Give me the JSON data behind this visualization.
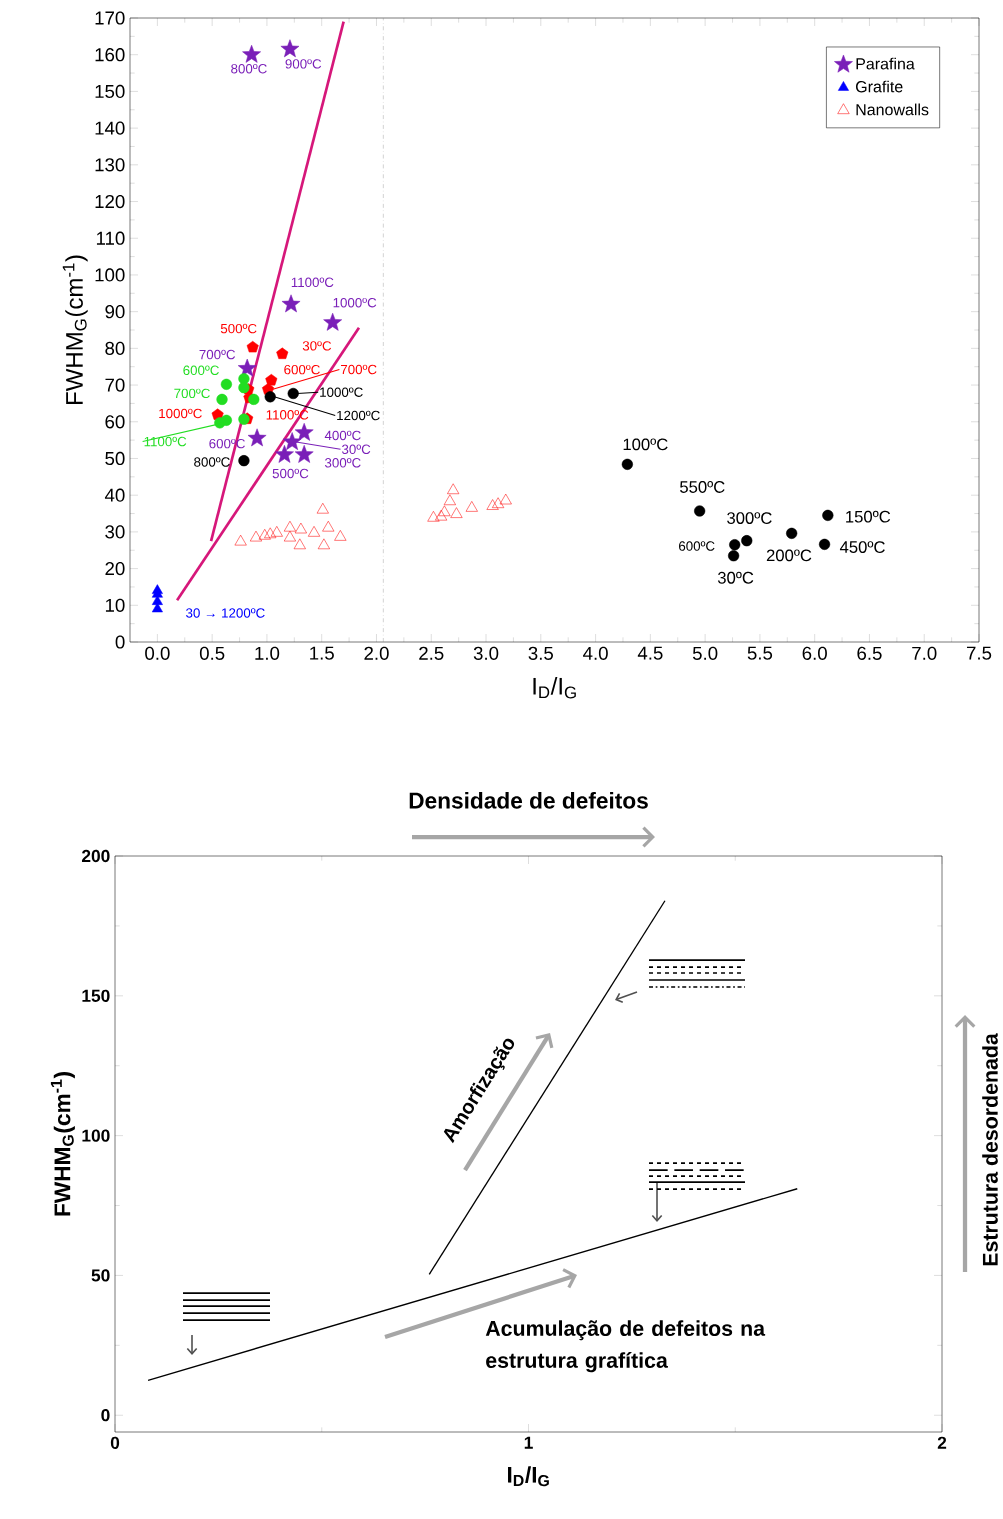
{
  "chart_data": [
    {
      "type": "scatter",
      "xlabel": "I$_{D}$/I$_{G}$",
      "ylabel": "FWHM$_{G}$(cm$^{-1}$)",
      "xlim": [
        -0.25,
        7.5
      ],
      "ylim": [
        0,
        170
      ],
      "xticks": [
        {
          "value": 0,
          "label": "0.0"
        },
        {
          "value": 0.5,
          "label": "0.5"
        },
        {
          "value": 1,
          "label": "1.0"
        },
        {
          "value": 1.5,
          "label": "1.5"
        },
        {
          "value": 2,
          "label": "2.0"
        },
        {
          "value": 2.5,
          "label": "2.5"
        },
        {
          "value": 3,
          "label": "3.0"
        },
        {
          "value": 3.5,
          "label": "3.5"
        },
        {
          "value": 4,
          "label": "4.0"
        },
        {
          "value": 4.5,
          "label": "4.5"
        },
        {
          "value": 5,
          "label": "5.0"
        },
        {
          "value": 5.5,
          "label": "5.5"
        },
        {
          "value": 6,
          "label": "6.0"
        },
        {
          "value": 6.5,
          "label": "6.5"
        },
        {
          "value": 7,
          "label": "7.0"
        },
        {
          "value": 7.5,
          "label": "7.5"
        }
      ],
      "yticks": [
        0,
        10,
        20,
        30,
        40,
        50,
        60,
        70,
        80,
        90,
        100,
        110,
        120,
        130,
        140,
        150,
        160,
        170
      ],
      "legend": "top right",
      "series": [
        {
          "name": "Parafina",
          "type": "scatter",
          "marker": "star",
          "color": "#7a1fb8",
          "x": [
            0.86,
            1.21,
            1.22,
            1.6,
            0.82,
            0.91,
            1.34,
            1.23,
            1.16,
            1.34
          ],
          "values": [
            160,
            161.5,
            92,
            87,
            74.5,
            55.5,
            57,
            54.5,
            51,
            51
          ]
        },
        {
          "type": "scatter",
          "color": "#ff0000",
          "x": [
            0.87,
            1.14,
            1.04,
            1.01,
            0.83,
            0.84,
            0.55,
            0.82
          ],
          "values": [
            80.3,
            78.5,
            71.3,
            68.8,
            68.8,
            66.5,
            61.9,
            60.8
          ]
        },
        {
          "type": "scatter",
          "marker": "circle",
          "color": "#22dd22",
          "x": [
            0.63,
            0.79,
            0.79,
            0.59,
            0.88,
            0.63,
            0.57,
            0.79
          ],
          "values": [
            70.2,
            71.7,
            69.3,
            66.1,
            66.1,
            60.4,
            59.7,
            60.7
          ]
        },
        {
          "type": "scatter",
          "marker": "circle",
          "color": "#000000",
          "x": [
            1.03,
            1.24,
            0.79,
            4.29,
            4.95,
            6.12,
            5.79,
            5.38,
            5.27,
            5.26,
            6.09
          ],
          "values": [
            66.8,
            67.7,
            49.4,
            48.4,
            35.7,
            34.5,
            29.6,
            27.6,
            26.5,
            23.5,
            26.6
          ]
        },
        {
          "name": "Grafite",
          "type": "scatter",
          "marker": "triangle",
          "color": "#0000ff",
          "x": [
            0,
            0,
            0,
            0
          ],
          "values": [
            9,
            11,
            13,
            14
          ]
        },
        {
          "name": "Nanowalls",
          "type": "scatter",
          "marker": "triangle_open",
          "color": "#ff0000",
          "x": [
            0.76,
            0.9,
            0.98,
            1.03,
            1.09,
            1.21,
            1.31,
            1.43,
            1.56,
            1.67,
            1.51,
            1.21,
            1.3,
            1.52,
            2.7,
            2.67,
            2.87,
            2.62,
            2.73,
            2.52,
            2.59,
            3.18,
            3.11,
            3.06
          ],
          "values": [
            27.3,
            28.4,
            28.9,
            29.3,
            29.7,
            31.1,
            30.6,
            29.7,
            31.1,
            28.6,
            36,
            28.4,
            26.3,
            26.3,
            41.3,
            38.3,
            36.5,
            35.3,
            34.8,
            33.8,
            34.1,
            38.5,
            37.5,
            37
          ]
        },
        {
          "type": "line",
          "color": "#d6177a",
          "line_style": "solid",
          "x": [
            0.49,
            1.7
          ],
          "values": [
            27.5,
            169
          ]
        },
        {
          "type": "line",
          "color": "#d6177a",
          "line_style": "solid",
          "x": [
            0.18,
            1.84
          ],
          "values": [
            11.4,
            85.6
          ]
        }
      ],
      "ref_lines": [
        {
          "axis": "x",
          "value": 2.06,
          "color": "#808080",
          "line_style": "dashdot"
        }
      ],
      "annotations": [
        {
          "text": "800ºC",
          "x": 0.86,
          "y": 160
        },
        {
          "text": "900ºC",
          "x": 1.21,
          "y": 161.5
        },
        {
          "text": "1100ºC",
          "x": 1.22,
          "y": 92
        },
        {
          "text": "1000ºC",
          "x": 1.6,
          "y": 87
        },
        {
          "text": "700ºC",
          "x": 0.82,
          "y": 74.5
        },
        {
          "text": "600ºC",
          "x": 0.91,
          "y": 55.5
        },
        {
          "text": "400ºC",
          "x": 1.34,
          "y": 57
        },
        {
          "text": "30ºC",
          "x": 1.23,
          "y": 54.5
        },
        {
          "text": "500ºC",
          "x": 1.16,
          "y": 51
        },
        {
          "text": "300ºC",
          "x": 1.34,
          "y": 51
        },
        {
          "text": "500ºC",
          "x": 0.87,
          "y": 80.3
        },
        {
          "text": "30ºC",
          "x": 1.14,
          "y": 78.5
        },
        {
          "text": "600ºC",
          "x": 1.04,
          "y": 71.3
        },
        {
          "text": "700ºC",
          "x": 1.01,
          "y": 68.8
        },
        {
          "text": "1000ºC",
          "x": 0.55,
          "y": 61.9
        },
        {
          "text": "1100ºC",
          "x": 0.82,
          "y": 60.8
        },
        {
          "text": "600ºC",
          "x": 0.63,
          "y": 70.2
        },
        {
          "text": "700ºC",
          "x": 0.59,
          "y": 66.1
        },
        {
          "text": "1100ºC",
          "x": 0.57,
          "y": 59.7
        },
        {
          "text": "1200ºC",
          "x": 1.03,
          "y": 66.8
        },
        {
          "text": "1000ºC",
          "x": 1.24,
          "y": 67.7
        },
        {
          "text": "800ºC",
          "x": 0.79,
          "y": 49.4
        },
        {
          "text": "100ºC",
          "x": 4.29,
          "y": 48.4
        },
        {
          "text": "550ºC",
          "x": 4.95,
          "y": 35.7
        },
        {
          "text": "150ºC",
          "x": 6.12,
          "y": 34.5
        },
        {
          "text": "200ºC",
          "x": 5.79,
          "y": 29.6
        },
        {
          "text": "300ºC",
          "x": 5.38,
          "y": 27.6
        },
        {
          "text": "600ºC",
          "x": 5.27,
          "y": 26.5
        },
        {
          "text": "30ºC",
          "x": 5.26,
          "y": 23.5
        },
        {
          "text": "450ºC",
          "x": 6.09,
          "y": 26.6
        },
        {
          "text": "30 → 1200ºC",
          "x": 0,
          "y": 9
        }
      ]
    },
    {
      "type": "line",
      "title": "Densidade de defeitos",
      "xlabel": "I$_{D}$/I$_{G}$",
      "ylabel": "FWHM$_{G}$(cm$^{-1}$)",
      "xlim": [
        0,
        2
      ],
      "ylim": [
        -6,
        200
      ],
      "xticks": [
        0,
        1,
        2
      ],
      "yticks": [
        0,
        50,
        100,
        150,
        200
      ],
      "series": [
        {
          "color": "#000000",
          "line_style": "solid",
          "x": [
            0.08,
            1.65
          ],
          "values": [
            12.5,
            81
          ]
        },
        {
          "color": "#000000",
          "line_style": "solid",
          "x": [
            0.76,
            1.33
          ],
          "values": [
            50.4,
            184
          ]
        }
      ],
      "annotations": [
        "Amorfização",
        "Acumulação de defeitos na estrutura grafítica",
        "Estrutura desordenada"
      ]
    }
  ]
}
